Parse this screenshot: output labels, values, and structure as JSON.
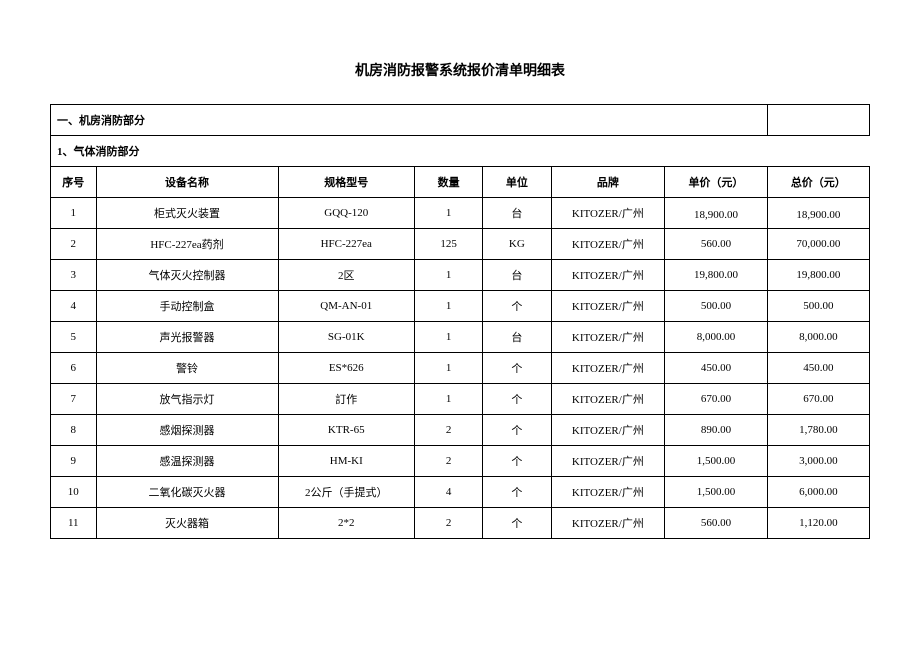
{
  "title": "机房消防报警系统报价清单明细表",
  "section1": "一、机房消防部分",
  "section1_sub": "1、气体消防部分",
  "columns": {
    "seq": "序号",
    "name": "设备名称",
    "model": "规格型号",
    "qty": "数量",
    "unit": "单位",
    "brand": "品牌",
    "price": "单价（元）",
    "total": "总价（元）"
  },
  "rows": [
    {
      "seq": "1",
      "name": "柜式灭火装置",
      "model": "GQQ-120",
      "qty": "1",
      "unit": "台",
      "brand": "KITOZER/广州",
      "price": "18,900.00",
      "total": "18,900.00",
      "price_bottom": true
    },
    {
      "seq": "2",
      "name": "HFC-227ea药剂",
      "model": "HFC-227ea",
      "qty": "125",
      "unit": "KG",
      "brand": "KITOZER/广州",
      "price": "560.00",
      "total": "70,000.00"
    },
    {
      "seq": "3",
      "name": "气体灭火控制器",
      "model": "2区",
      "qty": "1",
      "unit": "台",
      "brand": "KITOZER/广州",
      "price": "19,800.00",
      "total": "19,800.00"
    },
    {
      "seq": "4",
      "name": "手动控制盒",
      "model": "QM-AN-01",
      "qty": "1",
      "unit": "个",
      "brand": "KITOZER/广州",
      "price": "500.00",
      "total": "500.00"
    },
    {
      "seq": "5",
      "name": "声光报警器",
      "model": "SG-01K",
      "qty": "1",
      "unit": "台",
      "brand": "KITOZER/广州",
      "price": "8,000.00",
      "total": "8,000.00"
    },
    {
      "seq": "6",
      "name": "警铃",
      "model": "ES*626",
      "qty": "1",
      "unit": "个",
      "brand": "KITOZER/广州",
      "price": "450.00",
      "total": "450.00"
    },
    {
      "seq": "7",
      "name": "放气指示灯",
      "model": "訂作",
      "qty": "1",
      "unit": "个",
      "brand": "KITOZER/广州",
      "price": "670.00",
      "total": "670.00"
    },
    {
      "seq": "8",
      "name": "感烟探测器",
      "model": "KTR-65",
      "qty": "2",
      "unit": "个",
      "brand": "KITOZER/广州",
      "price": "890.00",
      "total": "1,780.00"
    },
    {
      "seq": "9",
      "name": "感温探测器",
      "model": "HM-KI",
      "qty": "2",
      "unit": "个",
      "brand": "KITOZER/广州",
      "price": "1,500.00",
      "total": "3,000.00"
    },
    {
      "seq": "10",
      "name": "二氧化碳灭火器",
      "model": "2公斤（手提式）",
      "qty": "4",
      "unit": "个",
      "brand": "KITOZER/广州",
      "price": "1,500.00",
      "total": "6,000.00"
    },
    {
      "seq": "11",
      "name": "灭火器箱",
      "model": "2*2",
      "qty": "2",
      "unit": "个",
      "brand": "KITOZER/广州",
      "price": "560.00",
      "total": "1,120.00"
    }
  ],
  "styling": {
    "background_color": "#ffffff",
    "border_color": "#000000",
    "title_fontsize": 14,
    "cell_fontsize": 11,
    "font_family": "SimSun"
  }
}
